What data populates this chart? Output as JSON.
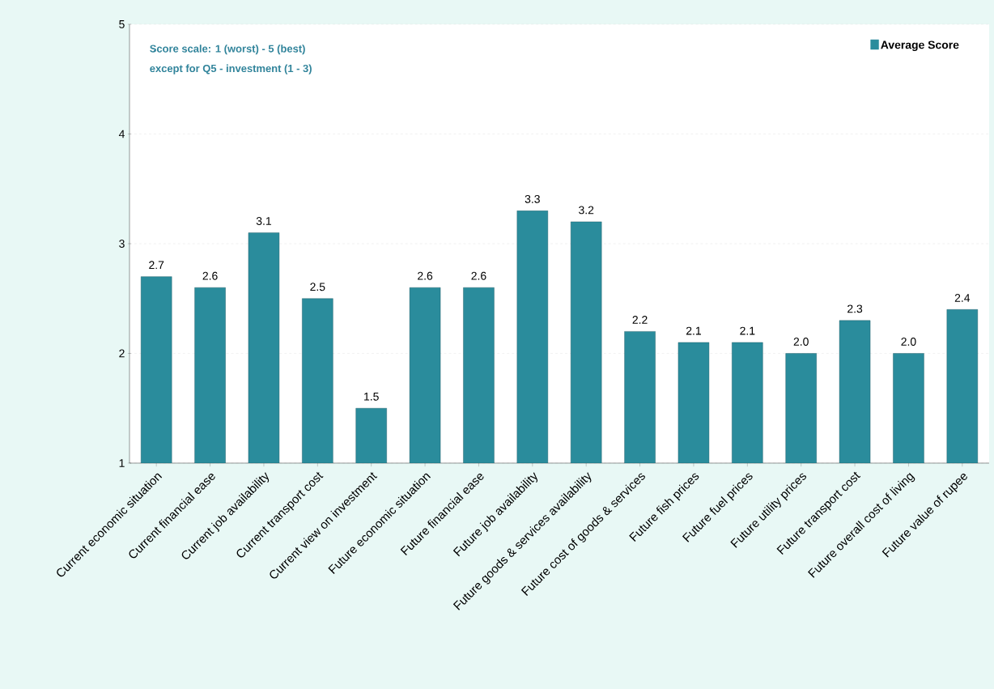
{
  "chart_data": {
    "type": "bar",
    "categories": [
      "Current economic situation",
      "Current financial ease",
      "Current job availability",
      "Current transport cost",
      "Current view on investment",
      "Future economic situation",
      "Future financial ease",
      "Future job availability",
      "Future goods & services availability",
      "Future cost of goods & services",
      "Future fish prices",
      "Future fuel prices",
      "Future utility prices",
      "Future transport cost",
      "Future overall cost of living",
      "Future value of rupee"
    ],
    "series": [
      {
        "name": "Average Score",
        "color": "#2a8c9c",
        "values": [
          2.7,
          2.6,
          3.1,
          2.5,
          1.5,
          2.6,
          2.6,
          3.3,
          3.2,
          2.2,
          2.1,
          2.1,
          2.0,
          2.3,
          2.0,
          2.4
        ],
        "value_labels": [
          "2.7",
          "2.6",
          "3.1",
          "2.5",
          "1.5",
          "2.6",
          "2.6",
          "3.3",
          "3.2",
          "2.2",
          "2.1",
          "2.1",
          "2.0",
          "2.3",
          "2.0",
          "2.4"
        ]
      }
    ],
    "ylim": [
      1,
      5
    ],
    "yticks": [
      1,
      2,
      3,
      4,
      5
    ],
    "grid": "y",
    "legend": "top right",
    "annotations": [
      "Score scale: 1 (worst) - 5 (best)",
      "except for Q5 - investment (1 - 3)"
    ]
  }
}
